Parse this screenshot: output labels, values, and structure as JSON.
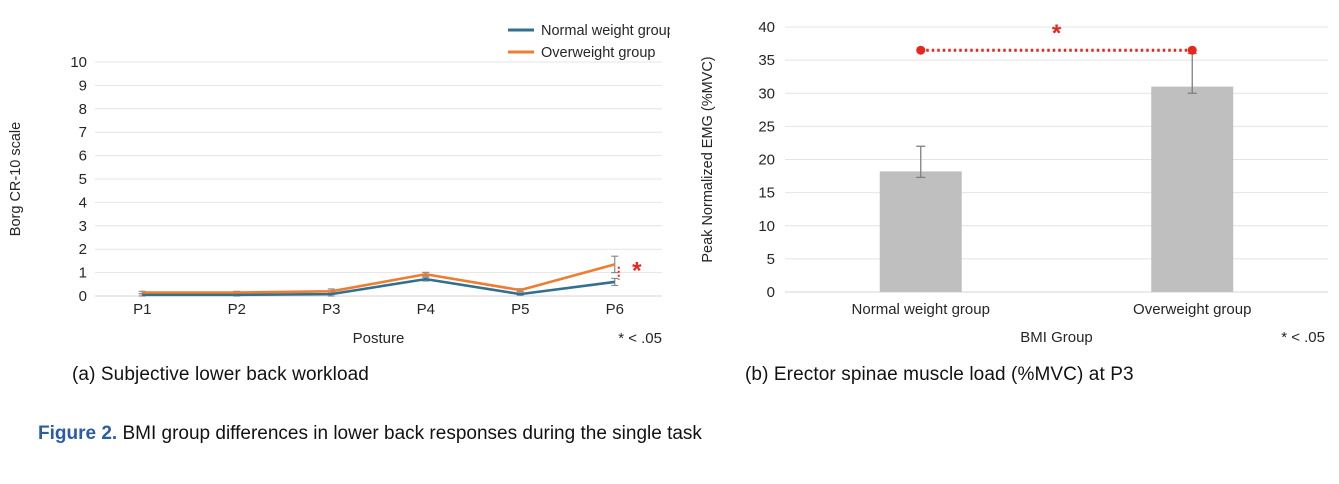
{
  "figure": {
    "panel_a_caption": "(a) Subjective lower back workload",
    "panel_b_caption": "(b) Erector spinae muscle load (%MVC) at P3",
    "caption_label": "Figure 2.",
    "caption_text": " BMI group differences in lower back responses during the single task"
  },
  "colors": {
    "normal_line": "#31708f",
    "overweight_line": "#ed7d31",
    "bar_fill": "#bfbfbf",
    "error_bar_line": "#8c8c8c",
    "error_bar_bar_chart": "#7f7f7f",
    "gridline": "#e4e4e4",
    "zero_line": "#d6d6d6",
    "tick_text": "#262626",
    "significance_red": "#e7261d",
    "caption_blue": "#2a5ca8"
  },
  "chart_data": [
    {
      "type": "line",
      "title": "",
      "categories": [
        "P1",
        "P2",
        "P3",
        "P4",
        "P5",
        "P6"
      ],
      "series": [
        {
          "name": "Normal weight group",
          "color": "#31708f",
          "values": [
            0.05,
            0.05,
            0.08,
            0.72,
            0.08,
            0.6
          ],
          "errors": [
            0.05,
            0.05,
            0.08,
            0.08,
            0.05,
            0.15
          ]
        },
        {
          "name": "Overweight group",
          "color": "#ed7d31",
          "values": [
            0.15,
            0.15,
            0.2,
            0.93,
            0.25,
            1.35
          ],
          "errors": [
            0.05,
            0.05,
            0.1,
            0.08,
            0.06,
            0.35
          ]
        }
      ],
      "xlabel": "Posture",
      "ylabel": "Borg CR-10 scale",
      "ylim": [
        0,
        10
      ],
      "ytick_step": 1,
      "grid": true,
      "legend_position": "top-right",
      "note": "* < .05",
      "significance": {
        "category": "P6",
        "bracket_from": 0.7,
        "bracket_to": 1.25,
        "star_value": 1.0
      }
    },
    {
      "type": "bar",
      "title": "",
      "categories": [
        "Normal weight group",
        "Overweight group"
      ],
      "values": [
        18.2,
        31
      ],
      "errors_up": [
        3.8,
        5.0
      ],
      "errors_down": [
        0.9,
        1.0
      ],
      "xlabel": "BMI Group",
      "ylabel": "Peak Normalized EMG (%MVC)",
      "ylim": [
        0,
        40
      ],
      "ytick_step": 5,
      "grid": true,
      "note": "* < .05",
      "significance": {
        "line_value": 36.5,
        "star_value": 38.8
      }
    }
  ]
}
